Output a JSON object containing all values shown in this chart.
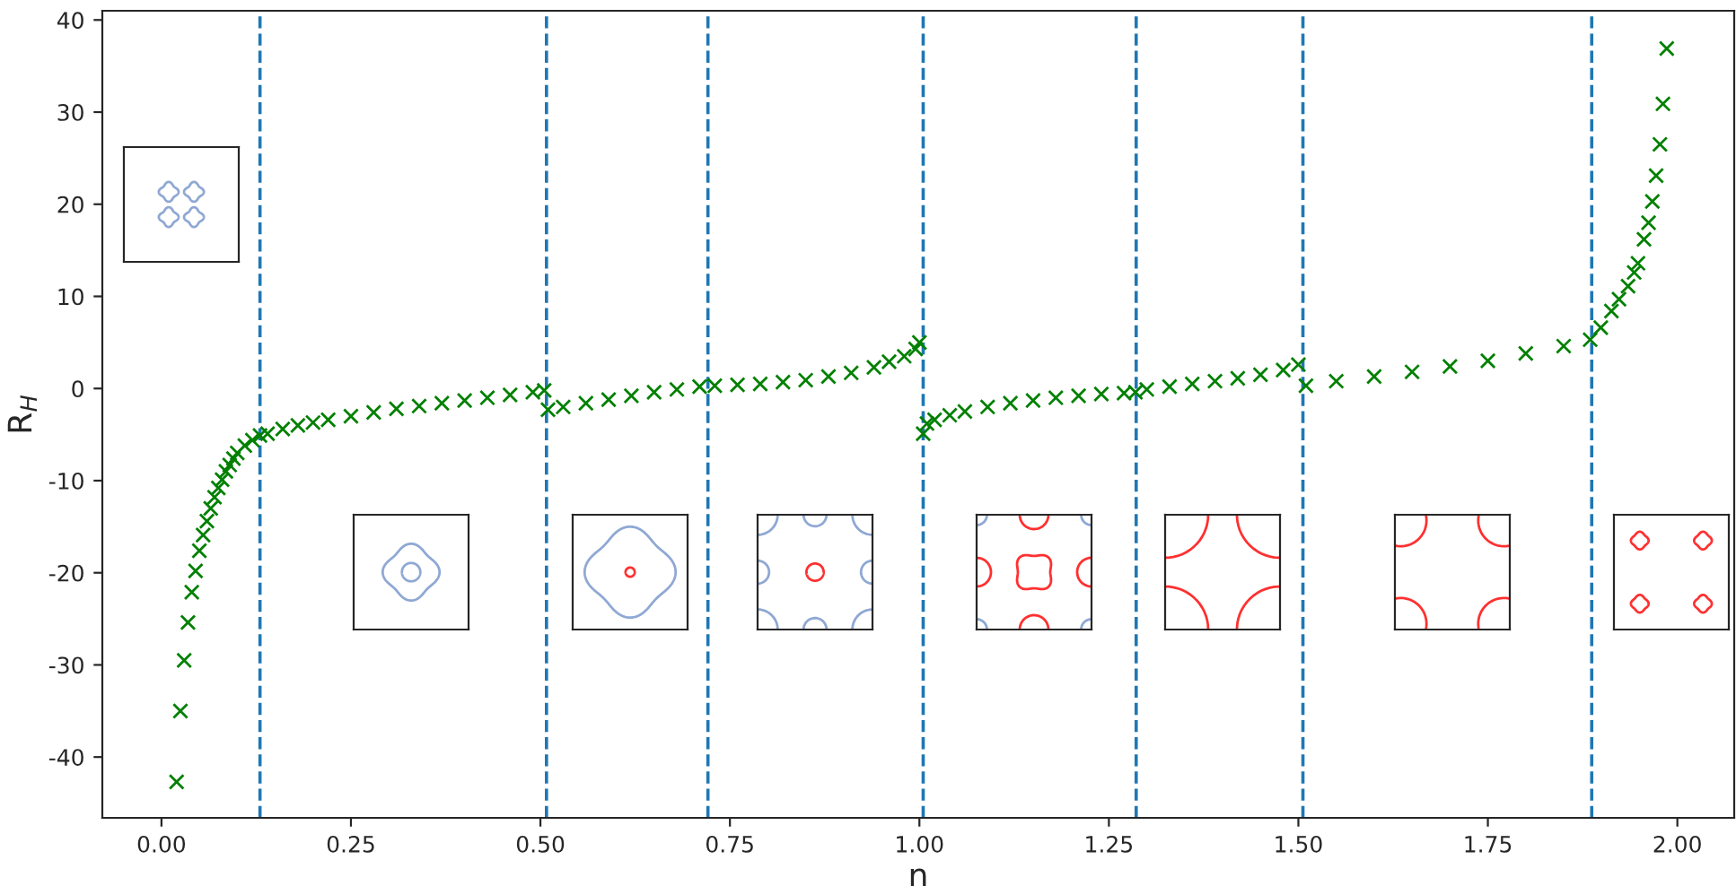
{
  "chart_data": {
    "type": "scatter",
    "xlabel": "n",
    "ylabel": "R$_{H}$",
    "marker": "cross",
    "grid": false,
    "xlim": [
      -0.078,
      2.075
    ],
    "ylim": [
      -46.6,
      41.0
    ],
    "xticks": [
      {
        "value": 0,
        "label": "0.00"
      },
      {
        "value": 0.25,
        "label": "0.25"
      },
      {
        "value": 0.5,
        "label": "0.50"
      },
      {
        "value": 0.75,
        "label": "0.75"
      },
      {
        "value": 1.0,
        "label": "1.00"
      },
      {
        "value": 1.25,
        "label": "1.25"
      },
      {
        "value": 1.5,
        "label": "1.50"
      },
      {
        "value": 1.75,
        "label": "1.75"
      },
      {
        "value": 2.0,
        "label": "2.00"
      }
    ],
    "yticks": [
      -40,
      -30,
      -20,
      -10,
      0,
      10,
      20,
      30,
      40
    ],
    "series": [
      {
        "color": "#008000",
        "x": [
          0.02,
          0.025,
          0.03,
          0.035,
          0.04,
          0.045,
          0.05,
          0.055,
          0.06,
          0.065,
          0.07,
          0.075,
          0.08,
          0.085,
          0.09,
          0.095,
          0.1,
          0.11,
          0.12,
          0.13,
          0.14,
          0.16,
          0.18,
          0.2,
          0.22,
          0.25,
          0.28,
          0.31,
          0.34,
          0.37,
          0.4,
          0.43,
          0.46,
          0.49,
          0.505,
          0.51,
          0.53,
          0.56,
          0.59,
          0.62,
          0.65,
          0.68,
          0.71,
          0.73,
          0.76,
          0.79,
          0.82,
          0.85,
          0.88,
          0.91,
          0.94,
          0.96,
          0.98,
          0.995,
          1.0,
          1.005,
          1.01,
          1.02,
          1.04,
          1.06,
          1.09,
          1.12,
          1.15,
          1.18,
          1.21,
          1.24,
          1.27,
          1.285,
          1.3,
          1.33,
          1.36,
          1.39,
          1.42,
          1.45,
          1.48,
          1.5,
          1.51,
          1.55,
          1.6,
          1.65,
          1.7,
          1.75,
          1.8,
          1.85,
          1.885,
          1.899,
          1.913,
          1.923,
          1.935,
          1.943,
          1.948,
          1.956,
          1.962,
          1.967,
          1.972,
          1.977,
          1.981,
          1.986
        ],
        "values": [
          -42.7,
          -35.0,
          -29.5,
          -25.4,
          -22.1,
          -19.8,
          -17.6,
          -15.9,
          -14.4,
          -13.0,
          -11.8,
          -10.8,
          -9.9,
          -9.0,
          -8.3,
          -7.6,
          -7.0,
          -6.2,
          -5.6,
          -5.1,
          -4.9,
          -4.4,
          -4.0,
          -3.7,
          -3.4,
          -3.0,
          -2.6,
          -2.2,
          -1.9,
          -1.6,
          -1.3,
          -1.0,
          -0.7,
          -0.4,
          -0.2,
          -2.3,
          -2.0,
          -1.6,
          -1.2,
          -0.8,
          -0.4,
          -0.1,
          0.2,
          0.3,
          0.4,
          0.5,
          0.7,
          0.9,
          1.3,
          1.7,
          2.3,
          2.9,
          3.5,
          4.3,
          5.0,
          -4.9,
          -3.8,
          -3.4,
          -2.9,
          -2.5,
          -2.0,
          -1.6,
          -1.3,
          -1.0,
          -0.8,
          -0.6,
          -0.5,
          -0.4,
          -0.1,
          0.2,
          0.5,
          0.8,
          1.1,
          1.5,
          2.0,
          2.6,
          0.3,
          0.8,
          1.3,
          1.8,
          2.4,
          3.0,
          3.8,
          4.6,
          5.3,
          6.6,
          8.4,
          9.7,
          11.1,
          12.6,
          13.6,
          16.2,
          18.0,
          20.3,
          23.1,
          26.5,
          30.9,
          36.9
        ]
      }
    ],
    "ref_lines": [
      {
        "axis": "x",
        "value": 0.13,
        "color": "#1f77b4",
        "line_style": "dashed"
      },
      {
        "axis": "x",
        "value": 0.508,
        "color": "#1f77b4",
        "line_style": "dashed"
      },
      {
        "axis": "x",
        "value": 0.721,
        "color": "#1f77b4",
        "line_style": "dashed"
      },
      {
        "axis": "x",
        "value": 1.005,
        "color": "#1f77b4",
        "line_style": "dashed"
      },
      {
        "axis": "x",
        "value": 1.286,
        "color": "#1f77b4",
        "line_style": "dashed"
      },
      {
        "axis": "x",
        "value": 1.506,
        "color": "#1f77b4",
        "line_style": "dashed"
      },
      {
        "axis": "x",
        "value": 1.887,
        "color": "#1f77b4",
        "line_style": "dashed"
      }
    ]
  }
}
